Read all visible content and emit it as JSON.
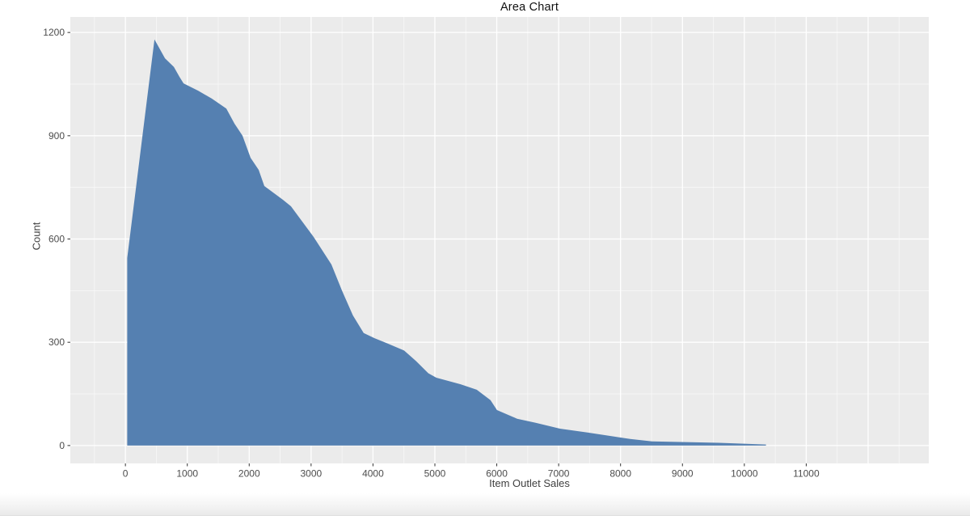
{
  "title": "Area Chart",
  "colors": {
    "area_fill": "#5580b1",
    "panel_background": "#ebebeb",
    "grid_major": "#ffffff",
    "grid_minor": "#ffffff",
    "tick_label": "#4d4d4d",
    "axis_title": "#404040",
    "tick_mark": "#333333",
    "page_background": "#ffffff"
  },
  "chart_data": {
    "type": "area",
    "title": "Area Chart",
    "xlabel": "Item Outlet Sales",
    "ylabel": "Count",
    "legend": "none",
    "grid": "on",
    "xlim": [
      -890,
      12980
    ],
    "ylim": [
      -52,
      1245
    ],
    "x_ticks": [
      0,
      1000,
      2000,
      3000,
      4000,
      5000,
      6000,
      7000,
      8000,
      9000,
      10000,
      11000
    ],
    "x_grid_major": [
      0,
      1000,
      2000,
      3000,
      4000,
      5000,
      6000,
      7000,
      8000,
      9000,
      10000,
      11000,
      12000
    ],
    "x_grid_minor": [
      -500,
      500,
      1500,
      2500,
      3500,
      4500,
      5500,
      6500,
      7500,
      8500,
      9500,
      10500,
      11500,
      12500
    ],
    "y_ticks": [
      0,
      300,
      600,
      900,
      1200
    ],
    "y_grid_minor": [
      150,
      450,
      750,
      1050
    ],
    "points": [
      [
        30,
        545
      ],
      [
        470,
        1180
      ],
      [
        640,
        1125
      ],
      [
        783,
        1100
      ],
      [
        874,
        1071
      ],
      [
        940,
        1052
      ],
      [
        1175,
        1031
      ],
      [
        1396,
        1008
      ],
      [
        1631,
        979
      ],
      [
        1762,
        935
      ],
      [
        1892,
        900
      ],
      [
        2023,
        836
      ],
      [
        2153,
        801
      ],
      [
        2245,
        754
      ],
      [
        2545,
        714
      ],
      [
        2675,
        695
      ],
      [
        2897,
        641
      ],
      [
        3041,
        606
      ],
      [
        3328,
        526
      ],
      [
        3500,
        450
      ],
      [
        3676,
        378
      ],
      [
        3850,
        327
      ],
      [
        4024,
        312
      ],
      [
        4241,
        296
      ],
      [
        4502,
        276
      ],
      [
        4698,
        245
      ],
      [
        4894,
        210
      ],
      [
        5024,
        197
      ],
      [
        5416,
        178
      ],
      [
        5677,
        162
      ],
      [
        5899,
        132
      ],
      [
        6003,
        103
      ],
      [
        6329,
        78
      ],
      [
        6629,
        66
      ],
      [
        7021,
        49
      ],
      [
        7465,
        38
      ],
      [
        8156,
        19
      ],
      [
        8509,
        12
      ],
      [
        9292,
        9
      ],
      [
        9592,
        8
      ],
      [
        10350,
        3
      ]
    ]
  }
}
